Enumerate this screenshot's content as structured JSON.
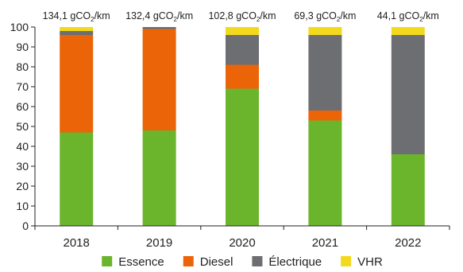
{
  "chart_data": {
    "type": "bar",
    "stacked": true,
    "categories": [
      "2018",
      "2019",
      "2020",
      "2021",
      "2022"
    ],
    "series": [
      {
        "name": "Essence",
        "color": "#6bb52d",
        "values": [
          47,
          48,
          69,
          53,
          36
        ]
      },
      {
        "name": "Diesel",
        "color": "#ec6408",
        "values": [
          49,
          51,
          12,
          5,
          0
        ]
      },
      {
        "name": "Électrique",
        "color": "#6d6e71",
        "values": [
          2,
          1,
          15,
          38,
          60
        ]
      },
      {
        "name": "VHR",
        "color": "#f3d91d",
        "values": [
          2,
          0,
          4,
          4,
          4
        ]
      }
    ],
    "annotations": [
      {
        "category": "2018",
        "value": "134,1",
        "unit_prefix": "gCO",
        "unit_sub": "2",
        "unit_suffix": "/km"
      },
      {
        "category": "2019",
        "value": "132,4",
        "unit_prefix": "gCO",
        "unit_sub": "2",
        "unit_suffix": "/km"
      },
      {
        "category": "2020",
        "value": "102,8",
        "unit_prefix": "gCO",
        "unit_sub": "2",
        "unit_suffix": "/km"
      },
      {
        "category": "2021",
        "value": "69,3",
        "unit_prefix": "gCO",
        "unit_sub": "2",
        "unit_suffix": "/km"
      },
      {
        "category": "2022",
        "value": "44,1",
        "unit_prefix": "gCO",
        "unit_sub": "2",
        "unit_suffix": "/km"
      }
    ],
    "ylim": [
      0,
      100
    ],
    "yticks": [
      0,
      10,
      20,
      30,
      40,
      50,
      60,
      70,
      80,
      90,
      100
    ],
    "grid": false,
    "legend_position": "bottom"
  }
}
